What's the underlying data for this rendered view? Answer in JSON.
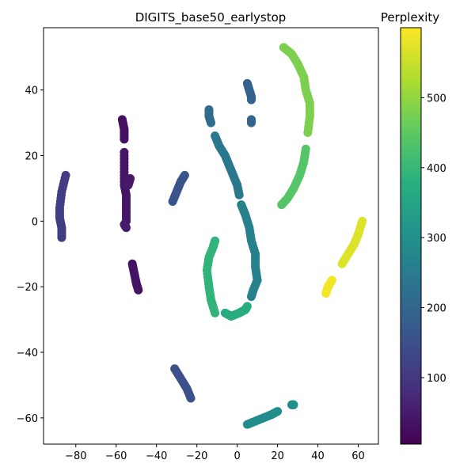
{
  "chart_data": {
    "type": "scatter",
    "title": "DIGITS_base50_earlystop",
    "xlabel": "",
    "ylabel": "",
    "xlim": [
      -96,
      70
    ],
    "ylim": [
      -68,
      59
    ],
    "xticks": [
      -80,
      -60,
      -40,
      -20,
      0,
      20,
      40,
      60
    ],
    "yticks": [
      -60,
      -40,
      -20,
      0,
      20,
      40
    ],
    "grid": false,
    "colorbar": {
      "label": "Perplexity",
      "colormap": "viridis",
      "range": [
        5,
        600
      ],
      "ticks": [
        100,
        200,
        300,
        400,
        500
      ]
    },
    "segments": [
      {
        "c": 30,
        "pts": [
          [
            -57,
            31
          ],
          [
            -56,
            28
          ],
          [
            -56,
            25
          ]
        ]
      },
      {
        "c": 40,
        "pts": [
          [
            -56,
            21
          ],
          [
            -56,
            16
          ],
          [
            -56,
            11
          ],
          [
            -55,
            8
          ],
          [
            -55,
            4
          ],
          [
            -55,
            0
          ]
        ]
      },
      {
        "c": 45,
        "pts": [
          [
            -53,
            13
          ],
          [
            -54,
            11
          ]
        ]
      },
      {
        "c": 50,
        "pts": [
          [
            -56,
            -1
          ],
          [
            -55,
            -2
          ]
        ]
      },
      {
        "c": 35,
        "pts": [
          [
            -52,
            -13
          ],
          [
            -51,
            -16
          ],
          [
            -50,
            -19
          ],
          [
            -49,
            -21
          ]
        ]
      },
      {
        "c": 110,
        "pts": [
          [
            -85,
            14
          ],
          [
            -87,
            9
          ],
          [
            -88,
            4
          ],
          [
            -88,
            1
          ],
          [
            -87,
            -2
          ],
          [
            -87,
            -5
          ]
        ]
      },
      {
        "c": 150,
        "pts": [
          [
            -31,
            -45
          ],
          [
            -28,
            -48
          ],
          [
            -25,
            -51
          ],
          [
            -23,
            -54
          ]
        ]
      },
      {
        "c": 160,
        "pts": [
          [
            -32,
            6
          ],
          [
            -30,
            9
          ],
          [
            -28,
            12
          ],
          [
            -26,
            14
          ]
        ]
      },
      {
        "c": 190,
        "pts": [
          [
            5,
            42
          ],
          [
            6,
            40
          ],
          [
            7,
            38
          ],
          [
            7,
            37
          ]
        ]
      },
      {
        "c": 195,
        "pts": [
          [
            7,
            31
          ],
          [
            7,
            30
          ]
        ]
      },
      {
        "c": 215,
        "pts": [
          [
            -14,
            34
          ],
          [
            -14,
            32
          ],
          [
            -13,
            30
          ]
        ]
      },
      {
        "c": 240,
        "pts": [
          [
            -11,
            26
          ],
          [
            -9,
            23
          ],
          [
            -6,
            20
          ],
          [
            -4,
            17
          ],
          [
            -2,
            14
          ],
          [
            0,
            11
          ],
          [
            1,
            8
          ]
        ]
      },
      {
        "c": 265,
        "pts": [
          [
            2,
            5
          ],
          [
            4,
            2
          ],
          [
            6,
            -2
          ],
          [
            7,
            -6
          ],
          [
            9,
            -10
          ],
          [
            9,
            -14
          ],
          [
            10,
            -18
          ],
          [
            8,
            -21
          ],
          [
            7,
            -23
          ]
        ]
      },
      {
        "c": 290,
        "pts": [
          [
            5,
            -62
          ],
          [
            9,
            -61
          ],
          [
            13,
            -60
          ],
          [
            17,
            -59
          ],
          [
            20,
            -58
          ]
        ]
      },
      {
        "c": 300,
        "pts": [
          [
            27,
            -56
          ],
          [
            28,
            -56
          ]
        ]
      },
      {
        "c": 370,
        "pts": [
          [
            -6,
            -28
          ],
          [
            -3,
            -29
          ],
          [
            1,
            -28
          ],
          [
            4,
            -27
          ],
          [
            5,
            -26
          ]
        ]
      },
      {
        "c": 390,
        "pts": [
          [
            -11,
            -28
          ],
          [
            -13,
            -24
          ],
          [
            -14,
            -20
          ],
          [
            -15,
            -15
          ],
          [
            -14,
            -11
          ],
          [
            -12,
            -8
          ],
          [
            -11,
            -6
          ]
        ]
      },
      {
        "c": 440,
        "pts": [
          [
            22,
            5
          ],
          [
            25,
            7
          ],
          [
            28,
            10
          ],
          [
            31,
            14
          ],
          [
            33,
            18
          ],
          [
            34,
            22
          ]
        ]
      },
      {
        "c": 480,
        "pts": [
          [
            35,
            27
          ],
          [
            36,
            32
          ],
          [
            36,
            36
          ],
          [
            34,
            40
          ],
          [
            33,
            44
          ],
          [
            30,
            48
          ],
          [
            27,
            51
          ],
          [
            23,
            53
          ]
        ]
      },
      {
        "c": 570,
        "pts": [
          [
            62,
            0
          ],
          [
            60,
            -4
          ],
          [
            58,
            -7
          ],
          [
            56,
            -9
          ],
          [
            54,
            -11
          ],
          [
            52,
            -13
          ]
        ]
      },
      {
        "c": 590,
        "pts": [
          [
            47,
            -18
          ],
          [
            45,
            -20
          ],
          [
            44,
            -22
          ]
        ]
      }
    ]
  }
}
